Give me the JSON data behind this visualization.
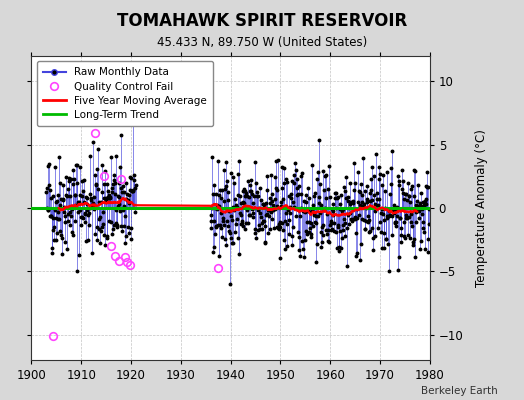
{
  "title": "TOMAHAWK SPIRIT RESERVOIR",
  "subtitle": "45.433 N, 89.750 W (United States)",
  "ylabel": "Temperature Anomaly (°C)",
  "credit": "Berkeley Earth",
  "xlim": [
    1900,
    1980
  ],
  "ylim": [
    -12,
    12
  ],
  "yticks": [
    -10,
    -5,
    0,
    5,
    10
  ],
  "xticks": [
    1900,
    1910,
    1920,
    1930,
    1940,
    1950,
    1960,
    1970,
    1980
  ],
  "fig_bg_color": "#d8d8d8",
  "plot_bg_color": "#ffffff",
  "raw_color": "#4444dd",
  "dot_color": "#000000",
  "ma_color": "#ff0000",
  "trend_color": "#00bb00",
  "qc_color": "#ff44ff",
  "seed": 42,
  "data_segments": [
    {
      "start": 1903.0,
      "end": 1921.0,
      "mean": 0.3,
      "std": 2.0
    },
    {
      "start": 1936.0,
      "end": 1980.0,
      "mean": -0.15,
      "std": 1.8
    }
  ],
  "qc_fails_x": [
    1904.3,
    1912.75,
    1914.5,
    1916.0,
    1916.75,
    1917.5,
    1918.0,
    1918.75,
    1919.25,
    1919.75,
    1937.5
  ],
  "qc_fails_y": [
    -10.1,
    5.9,
    2.5,
    -3.0,
    -3.8,
    -4.2,
    2.3,
    -3.9,
    -4.3,
    -4.5,
    -4.7
  ],
  "trend_y": 0.02,
  "ma_window": 60
}
